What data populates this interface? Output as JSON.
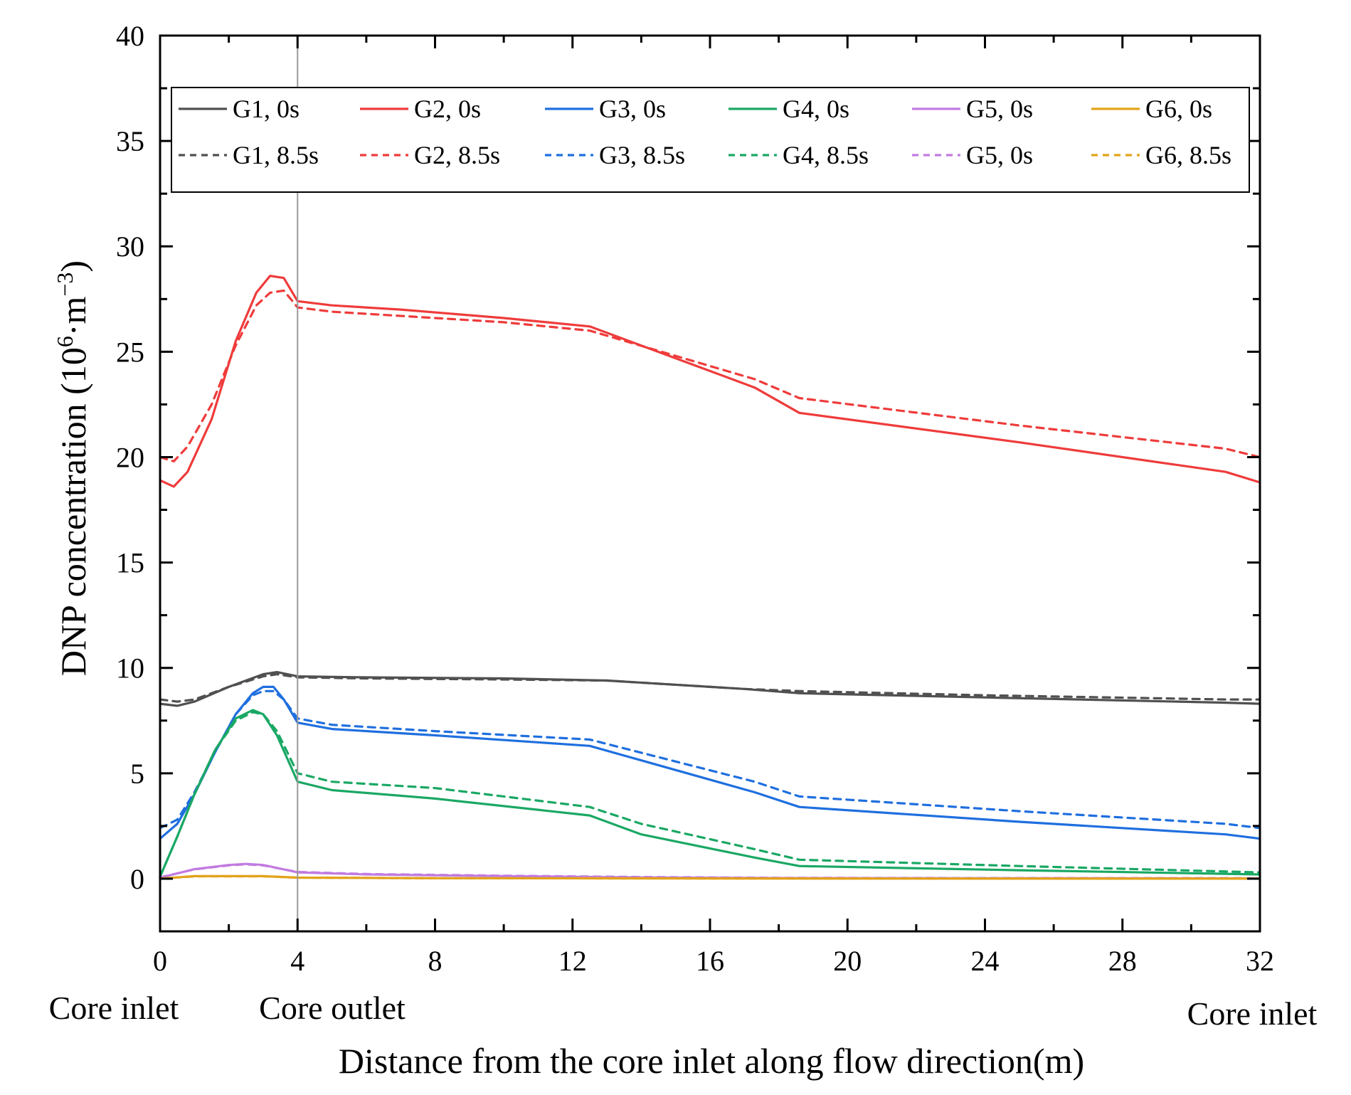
{
  "chart_data": {
    "type": "line",
    "title": "",
    "xlabel": "Distance from the core inlet along flow direction(m)",
    "ylabel_main": "DNP concentration (10",
    "ylabel_exp1": "6",
    "ylabel_mid": "·m",
    "ylabel_exp2": "−3",
    "ylabel_end": ")",
    "xlim": [
      0,
      32
    ],
    "ylim": [
      -2.5,
      40
    ],
    "xticks": [
      0,
      4,
      8,
      12,
      16,
      20,
      24,
      28,
      32
    ],
    "yticks": [
      0,
      5,
      10,
      15,
      20,
      25,
      30,
      35,
      40
    ],
    "reference_line_x": 4,
    "region_labels": [
      "Core inlet",
      "Core outlet",
      "Core inlet"
    ],
    "legend_position": "top",
    "series": [
      {
        "name": "G1, 0s",
        "color": "#505050",
        "dash": false,
        "x": [
          0,
          0.5,
          1,
          2,
          3,
          3.4,
          4,
          6,
          10,
          13,
          17,
          18.6,
          24,
          31,
          32
        ],
        "y": [
          8.3,
          8.2,
          8.4,
          9.1,
          9.7,
          9.8,
          9.6,
          9.55,
          9.5,
          9.4,
          9.0,
          8.8,
          8.6,
          8.35,
          8.3
        ]
      },
      {
        "name": "G1, 8.5s",
        "color": "#505050",
        "dash": true,
        "x": [
          0,
          0.5,
          1,
          2,
          3,
          3.4,
          4,
          6,
          10,
          13,
          17,
          18.6,
          24,
          31,
          32
        ],
        "y": [
          8.5,
          8.4,
          8.5,
          9.1,
          9.6,
          9.7,
          9.55,
          9.5,
          9.45,
          9.4,
          9.0,
          8.9,
          8.7,
          8.5,
          8.5
        ]
      },
      {
        "name": "G2, 0s",
        "color": "#ef3b3b",
        "dash": false,
        "x": [
          0,
          0.4,
          0.8,
          1.5,
          2.2,
          2.8,
          3.2,
          3.6,
          4,
          5,
          7,
          10,
          12.5,
          17.3,
          18.6,
          25,
          31,
          32
        ],
        "y": [
          18.9,
          18.6,
          19.3,
          21.8,
          25.5,
          27.8,
          28.6,
          28.5,
          27.4,
          27.2,
          27.0,
          26.6,
          26.2,
          23.3,
          22.1,
          20.7,
          19.3,
          18.8
        ]
      },
      {
        "name": "G2, 8.5s",
        "color": "#ef3b3b",
        "dash": true,
        "x": [
          0,
          0.4,
          0.8,
          1.5,
          2.2,
          2.8,
          3.2,
          3.6,
          4,
          5,
          7,
          10,
          12.5,
          17.3,
          18.6,
          25,
          31,
          32
        ],
        "y": [
          20.0,
          19.8,
          20.5,
          22.5,
          25.3,
          27.2,
          27.8,
          27.9,
          27.1,
          26.9,
          26.7,
          26.4,
          26.0,
          23.7,
          22.8,
          21.5,
          20.4,
          20.0
        ]
      },
      {
        "name": "G3, 0s",
        "color": "#1f6fdf",
        "dash": false,
        "x": [
          0,
          0.5,
          1,
          1.6,
          2.2,
          2.7,
          3.0,
          3.3,
          3.6,
          4,
          5,
          8,
          12.5,
          17.3,
          18.6,
          25,
          31,
          32
        ],
        "y": [
          1.9,
          2.6,
          4.0,
          6.0,
          7.8,
          8.8,
          9.1,
          9.1,
          8.5,
          7.4,
          7.1,
          6.8,
          6.3,
          4.1,
          3.4,
          2.7,
          2.1,
          1.9
        ]
      },
      {
        "name": "G3, 8.5s",
        "color": "#1f6fdf",
        "dash": true,
        "x": [
          0,
          0.5,
          1,
          1.6,
          2.2,
          2.7,
          3.0,
          3.3,
          3.6,
          4,
          5,
          8,
          12.5,
          17.3,
          18.6,
          25,
          31,
          32
        ],
        "y": [
          2.4,
          2.8,
          4.1,
          6.0,
          7.8,
          8.7,
          8.9,
          8.9,
          8.5,
          7.6,
          7.3,
          7.0,
          6.6,
          4.6,
          3.9,
          3.2,
          2.6,
          2.4
        ]
      },
      {
        "name": "G4, 0s",
        "color": "#1aa864",
        "dash": false,
        "x": [
          0,
          0.5,
          1,
          1.6,
          2.2,
          2.7,
          3.0,
          3.4,
          4,
          5,
          8,
          12.5,
          14,
          17.3,
          18.6,
          25,
          32
        ],
        "y": [
          0.1,
          2.0,
          4.0,
          6.1,
          7.6,
          8.0,
          7.8,
          6.8,
          4.6,
          4.2,
          3.8,
          3.0,
          2.1,
          1.0,
          0.6,
          0.4,
          0.2
        ]
      },
      {
        "name": "G4, 8.5s",
        "color": "#1aa864",
        "dash": true,
        "x": [
          0,
          0.5,
          1,
          1.6,
          2.2,
          2.7,
          3.0,
          3.4,
          4,
          5,
          8,
          12.5,
          14,
          17.3,
          18.6,
          25,
          32
        ],
        "y": [
          0.1,
          2.0,
          4.0,
          6.1,
          7.5,
          7.9,
          7.8,
          7.0,
          5.0,
          4.6,
          4.3,
          3.4,
          2.6,
          1.4,
          0.9,
          0.6,
          0.3
        ]
      },
      {
        "name": "G5, 0s",
        "color": "#c27be0",
        "dash": false,
        "x": [
          0,
          1,
          2,
          2.5,
          3,
          4,
          6,
          10,
          14,
          18,
          24,
          32
        ],
        "y": [
          0.05,
          0.45,
          0.65,
          0.7,
          0.65,
          0.3,
          0.2,
          0.12,
          0.06,
          0.03,
          0.02,
          0.01
        ]
      },
      {
        "name": "G5, 0s",
        "color": "#c27be0",
        "dash": true,
        "x": [
          0,
          1,
          2,
          2.5,
          3,
          4,
          6,
          10,
          14,
          18,
          24,
          32
        ],
        "y": [
          0.06,
          0.44,
          0.63,
          0.68,
          0.63,
          0.32,
          0.22,
          0.14,
          0.08,
          0.04,
          0.03,
          0.02
        ]
      },
      {
        "name": "G6, 0s",
        "color": "#e3a31a",
        "dash": false,
        "x": [
          0,
          1,
          2,
          3,
          4,
          8,
          16,
          24,
          32
        ],
        "y": [
          0.0,
          0.12,
          0.12,
          0.12,
          0.05,
          0.02,
          0.01,
          0.0,
          0.0
        ]
      },
      {
        "name": "G6, 8.5s",
        "color": "#e3a31a",
        "dash": true,
        "x": [
          0,
          1,
          2,
          3,
          4,
          8,
          16,
          24,
          32
        ],
        "y": [
          0.0,
          0.11,
          0.11,
          0.11,
          0.05,
          0.02,
          0.01,
          0.0,
          0.0
        ]
      }
    ]
  }
}
